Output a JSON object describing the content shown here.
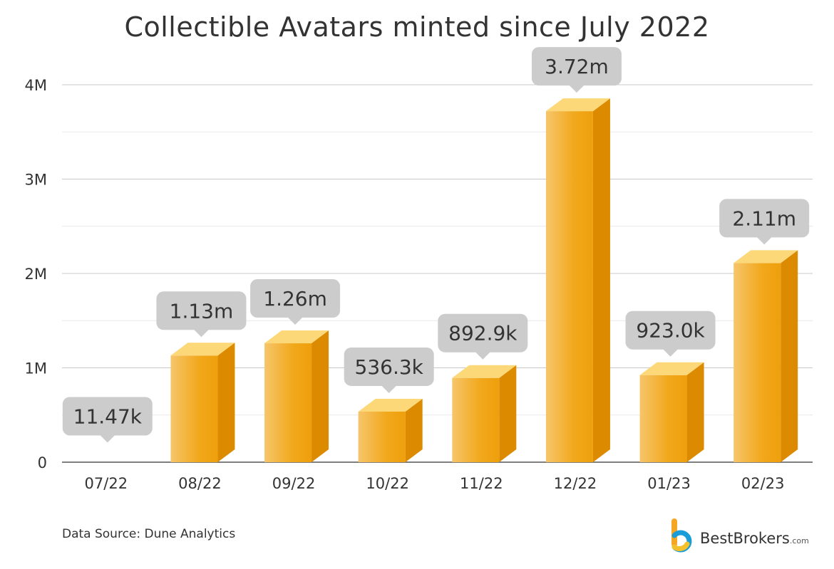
{
  "chart_data": {
    "type": "bar",
    "title": "Collectible Avatars minted since July 2022",
    "categories": [
      "07/22",
      "08/22",
      "09/22",
      "10/22",
      "11/22",
      "12/22",
      "01/23",
      "02/23"
    ],
    "values": [
      11470,
      1130000,
      1260000,
      536300,
      892900,
      3720000,
      923000,
      2110000
    ],
    "data_labels": [
      "11.47k",
      "1.13m",
      "1.26m",
      "536.3k",
      "892.9k",
      "3.72m",
      "923.0k",
      "2.11m"
    ],
    "y_ticks": [
      0,
      1000000,
      2000000,
      3000000,
      4000000
    ],
    "y_tick_labels": [
      "0",
      "1M",
      "2M",
      "3M",
      "4M"
    ],
    "ylim": [
      0,
      4000000
    ],
    "grid": true,
    "bar_color": "#f2a516",
    "label_bubble_color": "#cccccc"
  },
  "footer": {
    "source": "Data Source: Dune Analytics",
    "brand_name": "BestBrokers",
    "brand_domain": ".com"
  }
}
